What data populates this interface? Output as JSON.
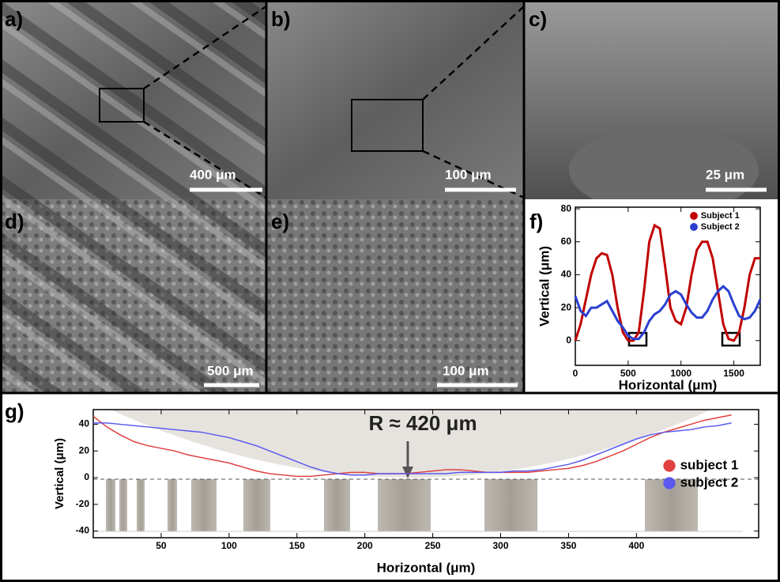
{
  "panels": [
    {
      "label": "a)",
      "scale_bar": "400 μm"
    },
    {
      "label": "b)",
      "scale_bar": "100 μm"
    },
    {
      "label": "c)",
      "scale_bar": "25 μm"
    },
    {
      "label": "d)",
      "scale_bar": "500 μm"
    },
    {
      "label": "e)",
      "scale_bar": "100 μm"
    }
  ],
  "chart_data": [
    {
      "type": "line",
      "label": "f)",
      "xlabel": "Horizontal (μm)",
      "ylabel": "Vertical (μm)",
      "x": [
        0,
        50,
        100,
        150,
        200,
        250,
        300,
        350,
        400,
        450,
        500,
        550,
        600,
        650,
        700,
        750,
        800,
        850,
        900,
        950,
        1000,
        1050,
        1100,
        1150,
        1200,
        1250,
        1300,
        1350,
        1400,
        1450,
        1500,
        1550,
        1600,
        1650,
        1700,
        1750
      ],
      "series": [
        {
          "name": "Subject 1",
          "color": "#c00000",
          "values": [
            0,
            10,
            25,
            40,
            50,
            53,
            52,
            40,
            20,
            5,
            0,
            0,
            5,
            30,
            60,
            70,
            68,
            45,
            20,
            12,
            10,
            20,
            40,
            55,
            60,
            60,
            50,
            30,
            10,
            1,
            0,
            5,
            20,
            40,
            50,
            50
          ]
        },
        {
          "name": "Subject 2",
          "color": "#2a3fd0",
          "values": [
            27,
            18,
            15,
            20,
            20,
            22,
            24,
            18,
            12,
            8,
            3,
            1,
            1,
            5,
            12,
            16,
            18,
            22,
            28,
            30,
            28,
            22,
            17,
            14,
            14,
            18,
            25,
            30,
            33,
            30,
            22,
            15,
            13,
            14,
            18,
            25
          ]
        }
      ],
      "xlim": [
        0,
        1750
      ],
      "xticks": [
        0,
        500,
        1000,
        1500
      ],
      "ylim": [
        -15,
        81
      ],
      "yticks": [
        0,
        20,
        40,
        60,
        80
      ],
      "legend": "upper right",
      "line_width": 3
    },
    {
      "type": "line",
      "label": "g)",
      "xlabel": "Horizontal (μm)",
      "ylabel": "Vertical (μm)",
      "annotation": "R ≈ 420 μm",
      "x": [
        0,
        10,
        20,
        30,
        40,
        50,
        60,
        70,
        80,
        90,
        100,
        110,
        120,
        130,
        140,
        150,
        160,
        170,
        180,
        190,
        200,
        210,
        220,
        230,
        240,
        250,
        260,
        270,
        280,
        290,
        300,
        310,
        320,
        330,
        340,
        350,
        360,
        370,
        380,
        390,
        400,
        410,
        420,
        430,
        440,
        450,
        460,
        470
      ],
      "series": [
        {
          "name": "subject 1",
          "color": "#e04040",
          "values": [
            46,
            38,
            32,
            27,
            24,
            22,
            20,
            17,
            15,
            13,
            11,
            8,
            5,
            3,
            2,
            1,
            1,
            2,
            3,
            4,
            4,
            3,
            3,
            3,
            4,
            5,
            6,
            6,
            5,
            4,
            4,
            4,
            4,
            5,
            6,
            7,
            9,
            12,
            16,
            20,
            25,
            30,
            34,
            37,
            40,
            43,
            45,
            47
          ]
        },
        {
          "name": "subject 2",
          "color": "#5a5af0",
          "values": [
            41,
            41,
            40,
            39,
            38,
            37,
            36,
            35,
            34,
            32,
            30,
            27,
            24,
            20,
            16,
            12,
            8,
            5,
            3,
            2,
            2,
            3,
            3,
            3,
            3,
            3,
            3,
            4,
            4,
            4,
            4,
            5,
            5,
            6,
            8,
            10,
            13,
            17,
            21,
            25,
            29,
            32,
            34,
            35,
            36,
            38,
            39,
            41
          ]
        }
      ],
      "xlim": [
        0,
        490
      ],
      "xticks": [
        50,
        100,
        150,
        200,
        250,
        300,
        350,
        400
      ],
      "ylim": [
        -45,
        51
      ],
      "yticks": [
        -40,
        -20,
        0,
        20,
        40
      ],
      "legend": "center right",
      "line_width": 1.5
    }
  ]
}
